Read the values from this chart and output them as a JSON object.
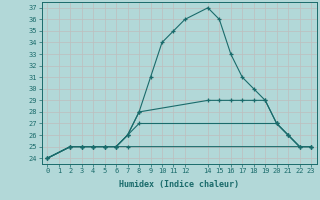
{
  "title": "",
  "xlabel": "Humidex (Indice chaleur)",
  "ylabel": "",
  "bg_color": "#b2d8d8",
  "grid_color": "#bebebe",
  "line_color": "#1a6b6b",
  "xlim": [
    -0.5,
    23.5
  ],
  "ylim": [
    23.5,
    37.5
  ],
  "xticks": [
    0,
    1,
    2,
    3,
    4,
    5,
    6,
    7,
    8,
    9,
    10,
    11,
    12,
    14,
    15,
    16,
    17,
    18,
    19,
    20,
    21,
    22,
    23
  ],
  "yticks": [
    24,
    25,
    26,
    27,
    28,
    29,
    30,
    31,
    32,
    33,
    34,
    35,
    36,
    37
  ],
  "lines": [
    {
      "x": [
        0,
        2,
        3,
        4,
        5,
        6,
        7,
        8,
        9,
        10,
        11,
        12,
        14,
        15,
        16,
        17,
        18,
        19,
        20,
        21,
        22,
        23
      ],
      "y": [
        24,
        25,
        25,
        25,
        25,
        25,
        26,
        28,
        31,
        34,
        35,
        36,
        37,
        36,
        33,
        31,
        30,
        29,
        27,
        26,
        25,
        25
      ]
    },
    {
      "x": [
        0,
        2,
        3,
        4,
        5,
        6,
        7,
        8,
        14,
        15,
        16,
        17,
        18,
        19,
        20,
        21,
        22,
        23
      ],
      "y": [
        24,
        25,
        25,
        25,
        25,
        25,
        26,
        28,
        29,
        29,
        29,
        29,
        29,
        29,
        27,
        26,
        25,
        25
      ]
    },
    {
      "x": [
        0,
        2,
        3,
        4,
        5,
        6,
        7,
        8,
        20,
        21,
        22,
        23
      ],
      "y": [
        24,
        25,
        25,
        25,
        25,
        25,
        26,
        27,
        27,
        26,
        25,
        25
      ]
    },
    {
      "x": [
        0,
        2,
        3,
        4,
        5,
        6,
        7,
        23
      ],
      "y": [
        24,
        25,
        25,
        25,
        25,
        25,
        25,
        25
      ]
    }
  ]
}
